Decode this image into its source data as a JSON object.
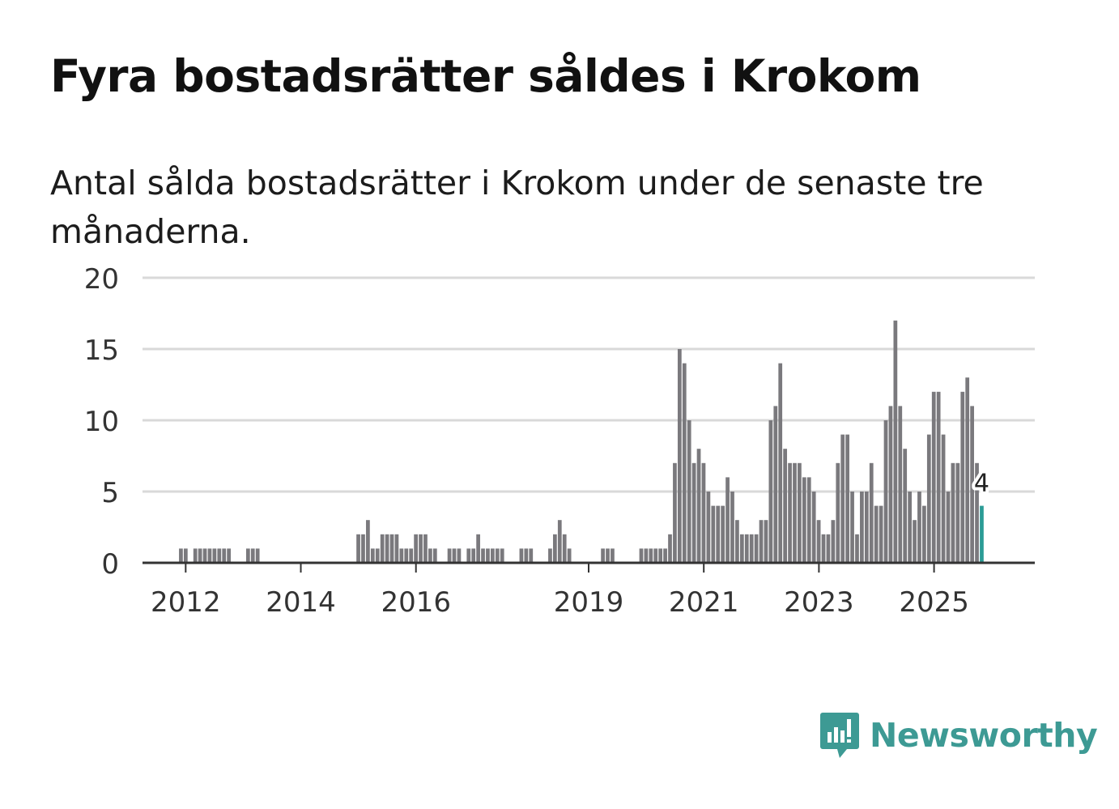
{
  "title": "Fyra bostadsrätter såldes i Krokom",
  "subtitle": "Antal sålda bostadsrätter i Krokom under de senaste tre månaderna.",
  "brand": {
    "name": "Newsworthy",
    "icon": "newsworthy-logo-icon"
  },
  "colors": {
    "bar": "#7a797d",
    "highlight": "#2b9c96",
    "grid": "#d9d9d9",
    "axis": "#333333",
    "text": "#333333"
  },
  "chart_data": {
    "type": "bar",
    "title": "Fyra bostadsrätter såldes i Krokom",
    "subtitle": "Antal sålda bostadsrätter i Krokom under de senaste tre månaderna.",
    "xlabel": "",
    "ylabel": "",
    "ylim": [
      0,
      20
    ],
    "yticks": [
      0,
      5,
      10,
      15,
      20
    ],
    "grid": true,
    "x_start_year": 2011.25,
    "x_end_year": 2026.75,
    "xticks": [
      2012,
      2014,
      2016,
      2019,
      2021,
      2023,
      2025
    ],
    "first_bar_year": 2011.917,
    "bar_step_years": 0.0833,
    "values": [
      1,
      1,
      0,
      1,
      1,
      1,
      1,
      1,
      1,
      1,
      1,
      0,
      0,
      0,
      1,
      1,
      1,
      0,
      0,
      0,
      0,
      0,
      0,
      0,
      0,
      0,
      0,
      0,
      0,
      0,
      0,
      0,
      0,
      0,
      0,
      0,
      0,
      2,
      2,
      3,
      1,
      1,
      2,
      2,
      2,
      2,
      1,
      1,
      1,
      2,
      2,
      2,
      1,
      1,
      0,
      0,
      1,
      1,
      1,
      0,
      1,
      1,
      2,
      1,
      1,
      1,
      1,
      1,
      0,
      0,
      0,
      1,
      1,
      1,
      0,
      0,
      0,
      1,
      2,
      3,
      2,
      1,
      0,
      0,
      0,
      0,
      0,
      0,
      1,
      1,
      1,
      0,
      0,
      0,
      0,
      0,
      1,
      1,
      1,
      1,
      1,
      1,
      2,
      7,
      15,
      14,
      10,
      7,
      8,
      7,
      5,
      4,
      4,
      4,
      6,
      5,
      3,
      2,
      2,
      2,
      2,
      3,
      3,
      10,
      11,
      14,
      8,
      7,
      7,
      7,
      6,
      6,
      5,
      3,
      2,
      2,
      3,
      7,
      9,
      9,
      5,
      2,
      5,
      5,
      7,
      4,
      4,
      10,
      11,
      17,
      11,
      8,
      5,
      3,
      5,
      4,
      9,
      12,
      12,
      9,
      5,
      7,
      7,
      12,
      13,
      11,
      7,
      4
    ],
    "highlight_label": "4"
  }
}
